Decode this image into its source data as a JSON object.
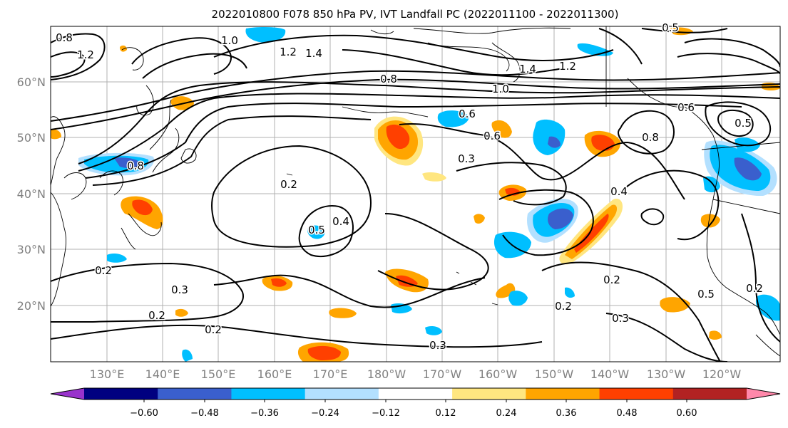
{
  "title": "2022010800 F078 850 hPa PV, IVT Landfall PC (2022011100 - 2022011300)",
  "lon_ticks": [
    "130°E",
    "140°E",
    "150°E",
    "160°E",
    "170°E",
    "180°W",
    "170°W",
    "160°W",
    "150°W",
    "140°W",
    "130°W",
    "120°W"
  ],
  "lat_ticks": [
    "60°N",
    "50°N",
    "40°N",
    "30°N",
    "20°N"
  ],
  "colorbar": {
    "tick_labels": [
      "−0.60",
      "−0.48",
      "−0.36",
      "−0.24",
      "−0.12",
      "0.12",
      "0.24",
      "0.36",
      "0.48",
      "0.60"
    ],
    "colors": [
      "#9933cc",
      "#000080",
      "#3a5fcd",
      "#00bfff",
      "#b3e0ff",
      "#ffffff",
      "#ffe680",
      "#ffa500",
      "#ff4000",
      "#b22222",
      "#ff88aa"
    ]
  },
  "contour_labels": [
    "0.8",
    "1.2",
    "1.0",
    "1.2",
    "1.4",
    "0.8",
    "1.0",
    "1.4",
    "1.2",
    "0.6",
    "0.8",
    "0.6",
    "0.5",
    "0.6",
    "0.3",
    "0.8",
    "0.2",
    "0.5",
    "0.4",
    "0.4",
    "0.2",
    "0.2",
    "0.3",
    "0.2",
    "0.2",
    "0.3",
    "0.5",
    "0.2",
    "0.3",
    "0.2",
    "0.5"
  ]
}
